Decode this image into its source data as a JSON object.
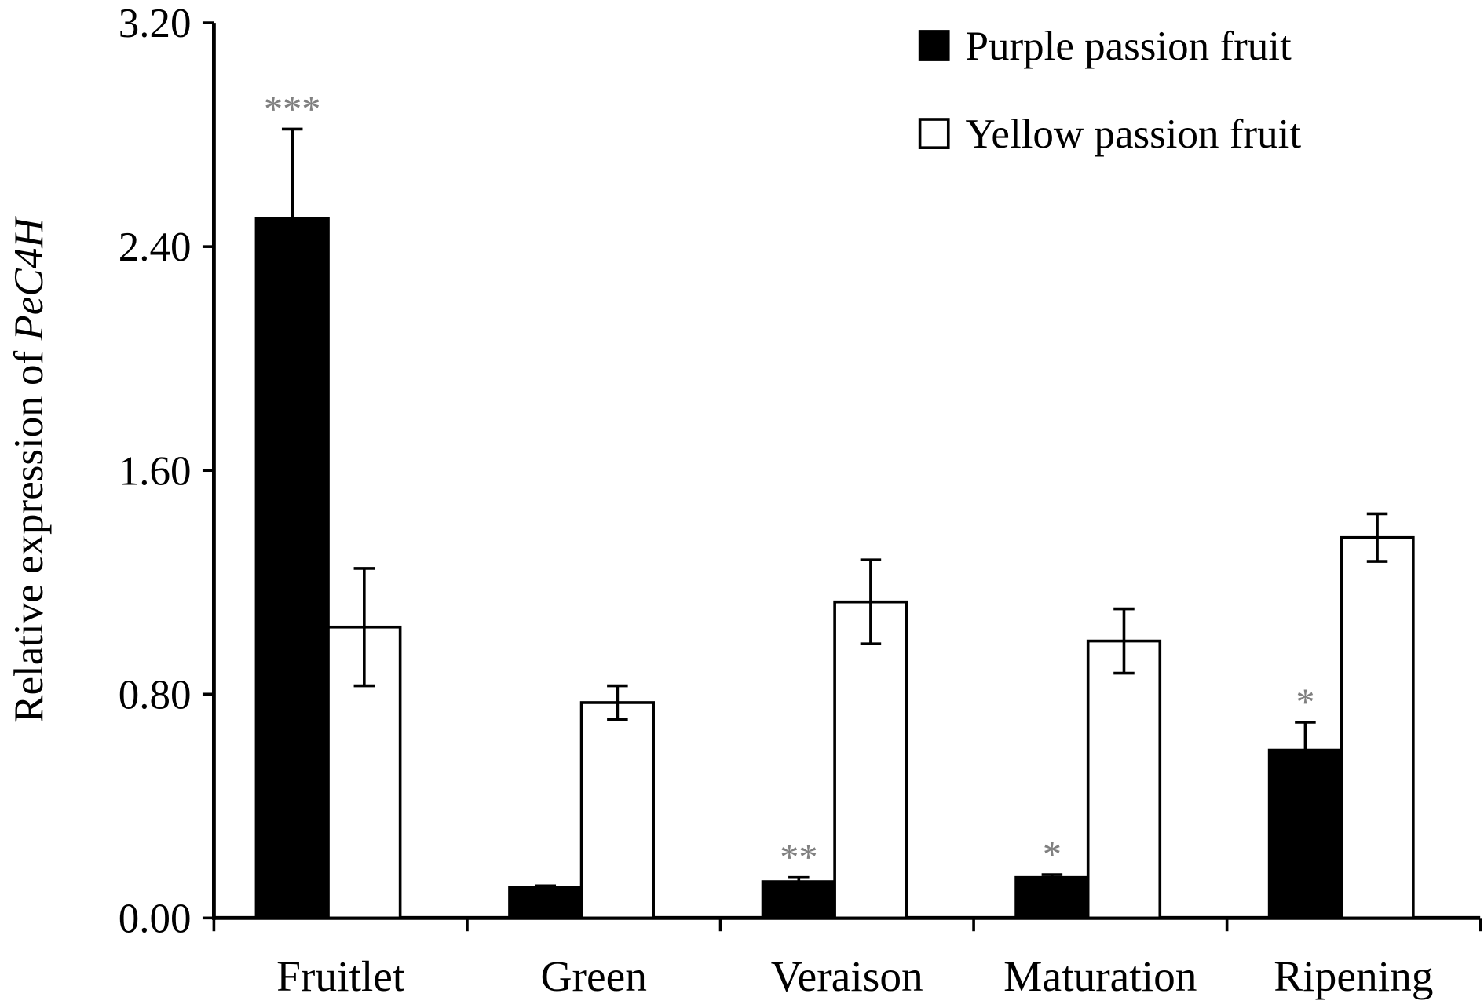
{
  "chart_data": {
    "type": "bar",
    "title": "",
    "xlabel": "",
    "ylabel": "Relative expression of ",
    "ylabel_italic": "PeC4H",
    "ylim": [
      0,
      3.2
    ],
    "yticks": [
      "0.00",
      "0.80",
      "1.60",
      "2.40",
      "3.20"
    ],
    "ytick_values": [
      0,
      0.8,
      1.6,
      2.4,
      3.2
    ],
    "grid": false,
    "legend_position": "top-right",
    "categories": [
      "Fruitlet",
      "Green",
      "Veraison",
      "Maturation",
      "Ripening"
    ],
    "series": [
      {
        "name": "Purple passion fruit",
        "color": "#000000",
        "values": [
          2.5,
          0.11,
          0.13,
          0.145,
          0.6
        ],
        "errors": [
          0.32,
          0.005,
          0.015,
          0.01,
          0.1
        ],
        "significance": [
          "***",
          "",
          "**",
          "*",
          "*"
        ]
      },
      {
        "name": "Yellow passion fruit",
        "color": "#ffffff",
        "values": [
          1.04,
          0.77,
          1.13,
          0.99,
          1.36
        ],
        "errors": [
          0.21,
          0.06,
          0.15,
          0.115,
          0.085
        ],
        "significance": [
          "",
          "",
          "",
          "",
          ""
        ]
      }
    ],
    "significance_color": "#808080"
  }
}
